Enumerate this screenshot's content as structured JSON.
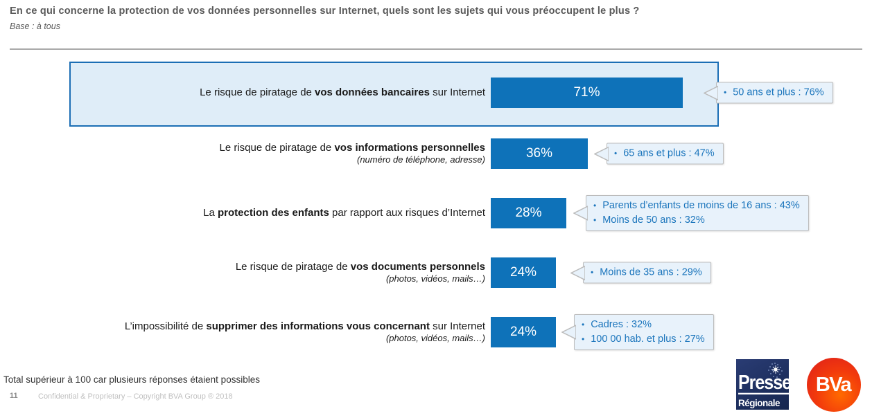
{
  "header": {
    "title": "En ce qui concerne la protection de vos données personnelles sur Internet, quels sont les sujets qui vous préoccupent le plus ?",
    "base": "Base : à tous"
  },
  "chart_data": {
    "type": "bar",
    "orientation": "horizontal",
    "unit": "%",
    "categories": [
      "Le risque de piratage de vos données bancaires sur Internet",
      "Le risque de piratage de vos informations personnelles (numéro de téléphone, adresse)",
      "La protection des enfants par rapport aux risques d’Internet",
      "Le risque de piratage de vos documents personnels (photos, vidéos, mails…)",
      "L’impossibilité de supprimer des informations vous concernant sur Internet (photos, vidéos, mails…)"
    ],
    "values": [
      71,
      36,
      28,
      24,
      24
    ],
    "xlim": [
      0,
      100
    ],
    "annotations": [
      [
        "50 ans et plus : 76%"
      ],
      [
        "65 ans et plus : 47%"
      ],
      [
        "Parents d’enfants de moins de 16 ans : 43%",
        "Moins de 50 ans : 32%"
      ],
      [
        "Moins de 35 ans : 29%"
      ],
      [
        "Cadres : 32%",
        "100 00 hab. et plus : 27%"
      ]
    ]
  },
  "rows": [
    {
      "label_pre": "Le risque de piratage de ",
      "label_bold": "vos données bancaires",
      "label_post": " sur Internet",
      "label_sub": "",
      "value": 71,
      "value_label": "71%",
      "callouts": [
        "50 ans et plus : 76%"
      ],
      "highlighted": true
    },
    {
      "label_pre": "Le risque de piratage de ",
      "label_bold": "vos informations personnelles",
      "label_post": "",
      "label_sub": "(numéro de téléphone, adresse)",
      "value": 36,
      "value_label": "36%",
      "callouts": [
        "65 ans et plus : 47%"
      ],
      "highlighted": false
    },
    {
      "label_pre": "La ",
      "label_bold": "protection des enfants",
      "label_post": " par rapport aux risques d’Internet",
      "label_sub": "",
      "value": 28,
      "value_label": "28%",
      "callouts": [
        "Parents d’enfants de moins de 16 ans : 43%",
        "Moins de 50 ans : 32%"
      ],
      "highlighted": false
    },
    {
      "label_pre": "Le risque de piratage de ",
      "label_bold": "vos documents personnels",
      "label_post": "",
      "label_sub": "(photos, vidéos, mails…)",
      "value": 24,
      "value_label": "24%",
      "callouts": [
        "Moins de 35 ans : 29%"
      ],
      "highlighted": false
    },
    {
      "label_pre": "L’impossibilité de ",
      "label_bold": "supprimer des informations vous concernant",
      "label_post": " sur Internet",
      "label_sub": "(photos, vidéos, mails…)",
      "value": 24,
      "value_label": "24%",
      "callouts": [
        "Cadres : 32%",
        "100 00 hab. et plus : 27%"
      ],
      "highlighted": false
    }
  ],
  "footnote": "Total supérieur à 100 car plusieurs réponses étaient possibles",
  "footer": {
    "page_number": "11",
    "copyright": "Confidential & Proprietary – Copyright BVA Group ®  2018"
  },
  "logos": {
    "presse_regionale": {
      "line1": "Presse",
      "line2": "Régionale"
    },
    "bva": "BVa"
  },
  "colors": {
    "bar": "#0e72b9",
    "highlight_border": "#1b6eb5",
    "highlight_bg": "#dfedf8",
    "callout_bg": "#e8f2fb",
    "callout_border": "#bcbcbc",
    "callout_text": "#1b75bc",
    "title_text": "#595959"
  }
}
